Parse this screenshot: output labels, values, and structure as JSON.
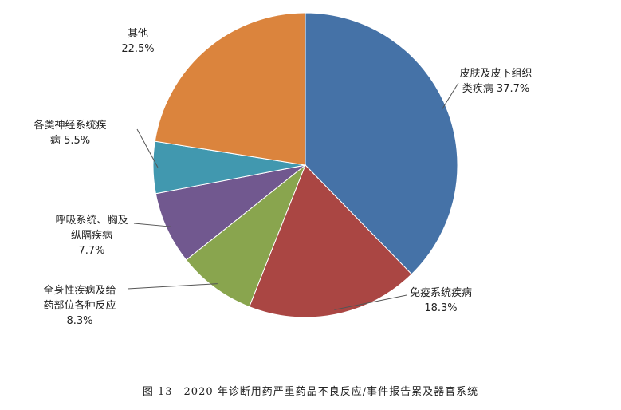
{
  "chart_data": {
    "type": "pie",
    "title": "图 13　2020 年诊断用药严重药品不良反应/事件报告累及器官系统",
    "categories": [
      "皮肤及皮下组织类疾病",
      "免疫系统疾病",
      "全身性疾病及给药部位各种反应",
      "呼吸系统、胸及纵隔疾病",
      "各类神经系统疾病",
      "其他"
    ],
    "values": [
      37.7,
      18.3,
      8.3,
      7.7,
      5.5,
      22.5
    ],
    "value_labels": [
      "37.7%",
      "18.3%",
      "8.3%",
      "7.7%",
      "5.5%",
      "22.5%"
    ],
    "colors": [
      "#4572a7",
      "#aa4643",
      "#89a54e",
      "#71588f",
      "#4198af",
      "#db843d"
    ]
  }
}
